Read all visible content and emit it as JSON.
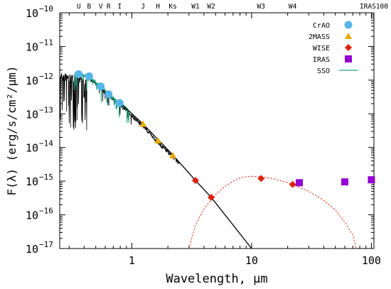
{
  "chart_data": {
    "type": "scatter",
    "title": "",
    "xlabel": "Wavelength, μm",
    "ylabel": "F(λ) (erg/s/cm²/μm)",
    "x_scale": "log",
    "y_scale": "log",
    "xlim": [
      0.25,
      105
    ],
    "ylim": [
      1e-17,
      1e-10
    ],
    "x_ticks": [
      {
        "value": 1,
        "label": "1"
      },
      {
        "value": 10,
        "label": "10"
      },
      {
        "value": 100,
        "label": "100"
      }
    ],
    "y_ticks": [
      {
        "exp": -10,
        "label": "10",
        "sup": "−10"
      },
      {
        "exp": -11,
        "label": "10",
        "sup": "−11"
      },
      {
        "exp": -12,
        "label": "10",
        "sup": "−12"
      },
      {
        "exp": -13,
        "label": "10",
        "sup": "−13"
      },
      {
        "exp": -14,
        "label": "10",
        "sup": "−14"
      },
      {
        "exp": -15,
        "label": "10",
        "sup": "−15"
      },
      {
        "exp": -16,
        "label": "10",
        "sup": "−16"
      },
      {
        "exp": -17,
        "label": "10",
        "sup": "−17"
      }
    ],
    "band_labels": [
      {
        "label": "U",
        "x": 0.36
      },
      {
        "label": "B",
        "x": 0.44
      },
      {
        "label": "V",
        "x": 0.55
      },
      {
        "label": "R",
        "x": 0.64
      },
      {
        "label": "I",
        "x": 0.79
      },
      {
        "label": "J",
        "x": 1.24
      },
      {
        "label": "H",
        "x": 1.65
      },
      {
        "label": "Ks",
        "x": 2.2
      },
      {
        "label": "W1",
        "x": 3.4
      },
      {
        "label": "W2",
        "x": 4.6
      },
      {
        "label": "W3",
        "x": 12
      },
      {
        "label": "W4",
        "x": 22
      },
      {
        "label": "IRAS100",
        "x": 100
      }
    ],
    "legend_position": "top-right",
    "series": [
      {
        "name": "CrAO",
        "marker": "circle",
        "color": "#56b4e9",
        "points": [
          [
            0.36,
            1.5e-12
          ],
          [
            0.44,
            1.3e-12
          ],
          [
            0.55,
            6.5e-13
          ],
          [
            0.64,
            3.8e-13
          ],
          [
            0.79,
            2.1e-13
          ]
        ]
      },
      {
        "name": "2MASS",
        "marker": "triangle",
        "color": "#e6a800",
        "points": [
          [
            1.24,
            5e-14
          ],
          [
            1.65,
            1.6e-14
          ],
          [
            2.2,
            5.8e-15
          ]
        ]
      },
      {
        "name": "WISE",
        "marker": "diamond",
        "color": "#e0200c",
        "points": [
          [
            3.4,
            1.05e-15
          ],
          [
            4.6,
            3.3e-16
          ],
          [
            12,
            1.2e-15
          ],
          [
            22,
            8e-16
          ]
        ]
      },
      {
        "name": "IRAS",
        "marker": "square",
        "color": "#9400d3",
        "points": [
          [
            25,
            9e-16
          ],
          [
            60,
            9.5e-16
          ],
          [
            100,
            1.1e-15
          ]
        ]
      },
      {
        "name": "SSO",
        "marker": "line",
        "color": "#1a9e77"
      }
    ],
    "fit_lines": [
      {
        "kind": "stellar",
        "color": "#000000",
        "style": "solid",
        "points": [
          [
            0.8,
            2.1e-13
          ],
          [
            1.24,
            5e-14
          ],
          [
            2.2,
            6e-15
          ],
          [
            3.4,
            1.05e-15
          ],
          [
            4.6,
            3.3e-16
          ],
          [
            10,
            1e-17
          ]
        ]
      },
      {
        "kind": "dust",
        "color": "#e0200c",
        "style": "dashed",
        "points": [
          [
            3.0,
            1e-17
          ],
          [
            3.4,
            5e-17
          ],
          [
            4.0,
            1.5e-16
          ],
          [
            5.0,
            4e-16
          ],
          [
            6.0,
            7e-16
          ],
          [
            7.0,
            1e-15
          ],
          [
            8.0,
            1.25e-15
          ],
          [
            9.0,
            1.35e-15
          ],
          [
            10.0,
            1.4e-15
          ],
          [
            12.0,
            1.35e-15
          ],
          [
            15.0,
            1.2e-15
          ],
          [
            20.0,
            9e-16
          ],
          [
            30.0,
            5e-16
          ],
          [
            40.0,
            2.7e-16
          ],
          [
            50.0,
            1.4e-16
          ],
          [
            60.0,
            6e-17
          ],
          [
            70.0,
            2.5e-17
          ],
          [
            75.0,
            1e-17
          ]
        ]
      }
    ]
  }
}
